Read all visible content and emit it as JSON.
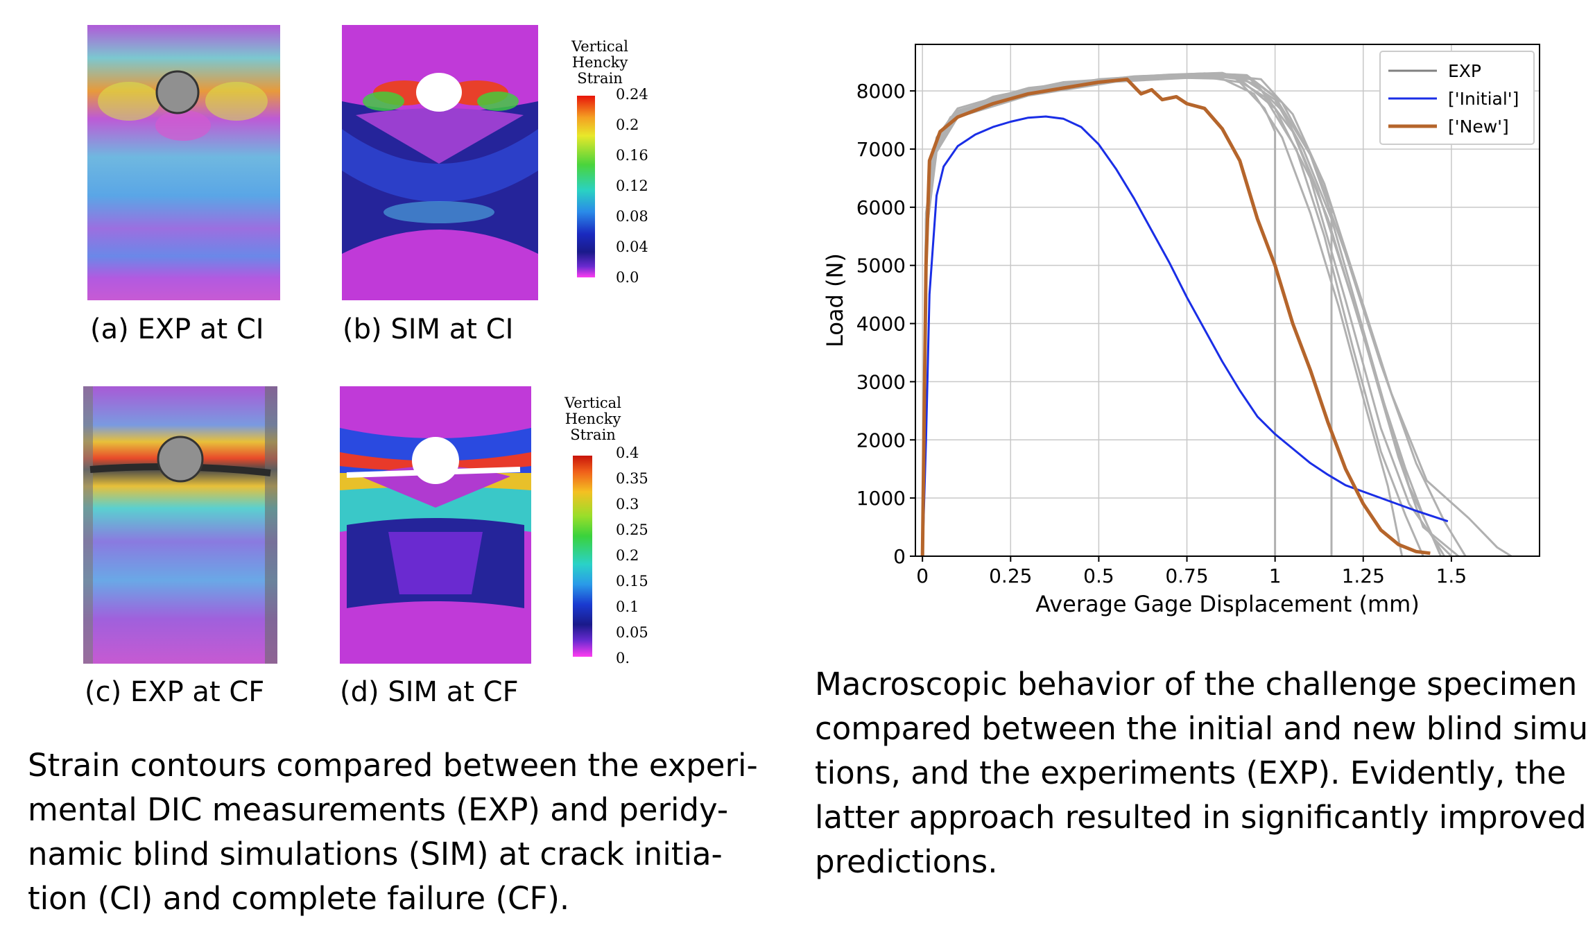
{
  "figure_left": {
    "panels": [
      {
        "label": "(a) EXP at CI"
      },
      {
        "label": "(b) SIM at CI"
      },
      {
        "label": "(c) EXP at CF"
      },
      {
        "label": "(d) SIM at CF"
      }
    ],
    "colorbar_top": {
      "title": [
        "Vertical",
        "Hencky",
        "Strain"
      ],
      "ticks": [
        "0.24",
        "0.2",
        "0.16",
        "0.12",
        "0.08",
        "0.04",
        "0.0"
      ]
    },
    "colorbar_bottom": {
      "title": [
        "Vertical",
        "Hencky",
        "Strain"
      ],
      "ticks": [
        "0.4",
        "0.35",
        "0.3",
        "0.25",
        "0.2",
        "0.15",
        "0.1",
        "0.05",
        "0."
      ]
    },
    "caption": [
      "Strain contours compared between the experi-",
      "mental DIC measurements (EXP) and peridy-",
      "namic blind simulations (SIM) at crack initia-",
      "tion (CI) and complete failure (CF)."
    ]
  },
  "figure_right": {
    "caption": [
      "Macroscopic behavior of the challenge specimen",
      "compared between the initial and new blind simula-",
      "tions, and the experiments (EXP). Evidently, the",
      "latter approach resulted in significantly improved",
      "predictions."
    ]
  },
  "chart_data": {
    "type": "line",
    "title": "",
    "xlabel": "Average Gage Displacement (mm)",
    "ylabel": "Load (N)",
    "xlim": [
      -0.02,
      1.75
    ],
    "ylim": [
      0,
      8800
    ],
    "xticks": [
      0,
      0.25,
      0.5,
      0.75,
      1,
      1.25,
      1.5
    ],
    "xtick_labels": [
      "0",
      "0.25",
      "0.5",
      "0.75",
      "1",
      "1.25",
      "1.5"
    ],
    "yticks": [
      0,
      1000,
      2000,
      3000,
      4000,
      5000,
      6000,
      7000,
      8000
    ],
    "ytick_labels": [
      "0",
      "1000",
      "2000",
      "3000",
      "4000",
      "5000",
      "6000",
      "7000",
      "8000"
    ],
    "grid": true,
    "legend_position": "top-right",
    "legend": [
      {
        "label": "EXP",
        "color": "#808080"
      },
      {
        "label": "['Initial']",
        "color": "#1a2ee6"
      },
      {
        "label": "['New']",
        "color": "#b5652b"
      }
    ],
    "series": [
      {
        "name": "EXP",
        "color": "#b0b0b0",
        "width": 3,
        "points": [
          [
            0,
            0
          ],
          [
            0.01,
            5500
          ],
          [
            0.03,
            7000
          ],
          [
            0.08,
            7550
          ],
          [
            0.2,
            7900
          ],
          [
            0.4,
            8150
          ],
          [
            0.6,
            8230
          ],
          [
            0.8,
            8280
          ],
          [
            0.9,
            8200
          ],
          [
            1.0,
            7700
          ],
          [
            1.1,
            6500
          ],
          [
            1.2,
            4400
          ],
          [
            1.3,
            2200
          ],
          [
            1.38,
            900
          ],
          [
            1.45,
            300
          ],
          [
            1.5,
            0
          ]
        ]
      },
      {
        "name": "EXP",
        "color": "#b0b0b0",
        "width": 3,
        "points": [
          [
            0,
            0
          ],
          [
            0.01,
            5800
          ],
          [
            0.04,
            7150
          ],
          [
            0.1,
            7650
          ],
          [
            0.3,
            8000
          ],
          [
            0.5,
            8200
          ],
          [
            0.7,
            8280
          ],
          [
            0.85,
            8310
          ],
          [
            0.95,
            8100
          ],
          [
            1.05,
            7300
          ],
          [
            1.15,
            5800
          ],
          [
            1.25,
            3800
          ],
          [
            1.35,
            1700
          ],
          [
            1.42,
            500
          ],
          [
            1.52,
            0
          ]
        ]
      },
      {
        "name": "EXP",
        "color": "#b0b0b0",
        "width": 3,
        "points": [
          [
            0,
            0
          ],
          [
            0.01,
            5600
          ],
          [
            0.04,
            7050
          ],
          [
            0.1,
            7600
          ],
          [
            0.3,
            7950
          ],
          [
            0.55,
            8180
          ],
          [
            0.75,
            8250
          ],
          [
            0.88,
            8240
          ],
          [
            0.97,
            7900
          ],
          [
            1.06,
            7000
          ],
          [
            1.14,
            5500
          ],
          [
            1.22,
            3600
          ],
          [
            1.3,
            1800
          ],
          [
            1.37,
            700
          ],
          [
            1.42,
            0
          ]
        ]
      },
      {
        "name": "EXP",
        "color": "#b0b0b0",
        "width": 3,
        "points": [
          [
            0,
            0
          ],
          [
            0.01,
            5700
          ],
          [
            0.04,
            7100
          ],
          [
            0.1,
            7620
          ],
          [
            0.3,
            7980
          ],
          [
            0.6,
            8220
          ],
          [
            0.8,
            8300
          ],
          [
            0.92,
            8260
          ],
          [
            1.02,
            7800
          ],
          [
            1.1,
            6900
          ],
          [
            1.2,
            5200
          ],
          [
            1.3,
            3300
          ],
          [
            1.4,
            1600
          ],
          [
            1.48,
            600
          ],
          [
            1.54,
            0
          ]
        ]
      },
      {
        "name": "EXP",
        "color": "#b0b0b0",
        "width": 3,
        "points": [
          [
            0,
            0
          ],
          [
            0.01,
            5500
          ],
          [
            0.04,
            7000
          ],
          [
            0.1,
            7580
          ],
          [
            0.3,
            7940
          ],
          [
            0.55,
            8170
          ],
          [
            0.8,
            8260
          ],
          [
            0.93,
            8200
          ],
          [
            1.03,
            7600
          ],
          [
            1.12,
            6300
          ],
          [
            1.22,
            4400
          ],
          [
            1.3,
            2800
          ],
          [
            1.37,
            1500
          ],
          [
            1.42,
            700
          ],
          [
            1.47,
            0
          ]
        ]
      },
      {
        "name": "EXP",
        "color": "#b0b0b0",
        "width": 3,
        "points": [
          [
            0,
            0
          ],
          [
            0.01,
            5900
          ],
          [
            0.04,
            7200
          ],
          [
            0.1,
            7700
          ],
          [
            0.3,
            8050
          ],
          [
            0.6,
            8250
          ],
          [
            0.8,
            8300
          ],
          [
            0.96,
            8200
          ],
          [
            1.05,
            7600
          ],
          [
            1.14,
            6400
          ],
          [
            1.23,
            4700
          ],
          [
            1.33,
            2800
          ],
          [
            1.43,
            1300
          ],
          [
            1.55,
            650
          ],
          [
            1.63,
            150
          ],
          [
            1.67,
            0
          ]
        ]
      },
      {
        "name": "EXP",
        "color": "#b0b0b0",
        "width": 3,
        "points": [
          [
            0,
            0
          ],
          [
            0.01,
            5600
          ],
          [
            0.04,
            7080
          ],
          [
            0.1,
            7600
          ],
          [
            0.3,
            7970
          ],
          [
            0.5,
            8150
          ],
          [
            0.7,
            8230
          ],
          [
            0.85,
            8210
          ],
          [
            0.94,
            7950
          ],
          [
            1.02,
            7200
          ],
          [
            1.1,
            5900
          ],
          [
            1.18,
            4300
          ],
          [
            1.26,
            2500
          ],
          [
            1.32,
            1200
          ],
          [
            1.36,
            0
          ]
        ]
      },
      {
        "name": "EXP",
        "color": "#b0b0b0",
        "width": 3,
        "points": [
          [
            0,
            0
          ],
          [
            0.01,
            5700
          ],
          [
            0.04,
            7120
          ],
          [
            0.1,
            7640
          ],
          [
            0.3,
            8000
          ],
          [
            0.55,
            8200
          ],
          [
            0.78,
            8280
          ],
          [
            0.9,
            8250
          ],
          [
            1.0,
            7850
          ],
          [
            1.08,
            7000
          ],
          [
            1.16,
            5800
          ],
          [
            1.24,
            4100
          ],
          [
            1.32,
            2400
          ],
          [
            1.38,
            1200
          ],
          [
            1.45,
            300
          ],
          [
            1.48,
            0
          ]
        ]
      },
      {
        "name": "EXP",
        "color": "#b0b0b0",
        "width": 3,
        "points": [
          [
            0,
            0
          ],
          [
            0.01,
            5800
          ],
          [
            0.04,
            7150
          ],
          [
            0.1,
            7660
          ],
          [
            0.3,
            8020
          ],
          [
            0.6,
            8240
          ],
          [
            0.82,
            8300
          ],
          [
            0.92,
            8270
          ],
          [
            1.0,
            7900
          ],
          [
            1.1,
            6900
          ],
          [
            1.16,
            6000
          ],
          [
            1.16,
            2000
          ],
          [
            1.16,
            0
          ]
        ]
      },
      {
        "name": "EXP",
        "color": "#b0b0b0",
        "width": 3,
        "points": [
          [
            0,
            0
          ],
          [
            0.01,
            5500
          ],
          [
            0.04,
            6950
          ],
          [
            0.1,
            7550
          ],
          [
            0.3,
            7920
          ],
          [
            0.55,
            8160
          ],
          [
            0.8,
            8240
          ],
          [
            0.9,
            8150
          ],
          [
            0.97,
            7700
          ],
          [
            1.0,
            7300
          ],
          [
            1.0,
            1000
          ],
          [
            1.0,
            0
          ]
        ]
      },
      {
        "name": "['Initial']",
        "color": "#1a2ee6",
        "width": 3,
        "points": [
          [
            0,
            0
          ],
          [
            0.01,
            2000
          ],
          [
            0.02,
            4500
          ],
          [
            0.04,
            6200
          ],
          [
            0.06,
            6700
          ],
          [
            0.1,
            7050
          ],
          [
            0.15,
            7250
          ],
          [
            0.2,
            7380
          ],
          [
            0.25,
            7470
          ],
          [
            0.3,
            7540
          ],
          [
            0.35,
            7560
          ],
          [
            0.4,
            7520
          ],
          [
            0.45,
            7380
          ],
          [
            0.5,
            7080
          ],
          [
            0.55,
            6650
          ],
          [
            0.6,
            6150
          ],
          [
            0.65,
            5600
          ],
          [
            0.7,
            5050
          ],
          [
            0.75,
            4450
          ],
          [
            0.8,
            3900
          ],
          [
            0.85,
            3350
          ],
          [
            0.9,
            2850
          ],
          [
            0.95,
            2400
          ],
          [
            1.0,
            2100
          ],
          [
            1.05,
            1850
          ],
          [
            1.1,
            1600
          ],
          [
            1.15,
            1400
          ],
          [
            1.2,
            1220
          ],
          [
            1.3,
            1000
          ],
          [
            1.4,
            780
          ],
          [
            1.49,
            600
          ]
        ]
      },
      {
        "name": "['New']",
        "color": "#b5652b",
        "width": 5,
        "points": [
          [
            0,
            0
          ],
          [
            0.01,
            5000
          ],
          [
            0.02,
            6800
          ],
          [
            0.05,
            7300
          ],
          [
            0.1,
            7550
          ],
          [
            0.2,
            7780
          ],
          [
            0.3,
            7950
          ],
          [
            0.4,
            8050
          ],
          [
            0.5,
            8150
          ],
          [
            0.58,
            8200
          ],
          [
            0.62,
            7950
          ],
          [
            0.65,
            8020
          ],
          [
            0.68,
            7850
          ],
          [
            0.72,
            7900
          ],
          [
            0.75,
            7780
          ],
          [
            0.8,
            7700
          ],
          [
            0.85,
            7350
          ],
          [
            0.9,
            6800
          ],
          [
            0.95,
            5800
          ],
          [
            1.0,
            5000
          ],
          [
            1.05,
            4000
          ],
          [
            1.1,
            3200
          ],
          [
            1.15,
            2300
          ],
          [
            1.2,
            1500
          ],
          [
            1.25,
            900
          ],
          [
            1.3,
            450
          ],
          [
            1.35,
            200
          ],
          [
            1.4,
            80
          ],
          [
            1.44,
            50
          ]
        ]
      }
    ]
  }
}
